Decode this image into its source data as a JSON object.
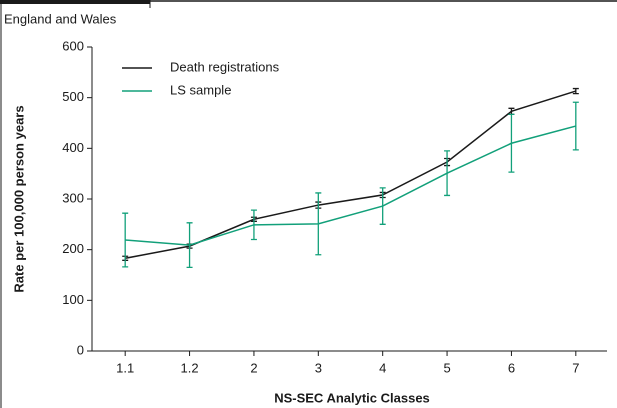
{
  "chart_data": {
    "type": "line",
    "title": "England and Wales",
    "x_label": "NS-SEC Analytic Classes",
    "y_label": "Rate per 100,000 person years",
    "categories": [
      "1.1",
      "1.2",
      "2",
      "3",
      "4",
      "5",
      "6",
      "7"
    ],
    "ylim": [
      0,
      600
    ],
    "yticks": [
      0,
      100,
      200,
      300,
      400,
      500,
      600
    ],
    "legend": "top-left",
    "series": [
      {
        "name": "Death registrations",
        "color": "#1a1a1a",
        "values": [
          183,
          207,
          260,
          288,
          308,
          373,
          473,
          513
        ],
        "errors": [
          4,
          4,
          4,
          6,
          5,
          7,
          6,
          5
        ]
      },
      {
        "name": "LS sample",
        "color": "#12a07a",
        "values": [
          219,
          209,
          249,
          251,
          286,
          351,
          410,
          444
        ],
        "errors": [
          53,
          44,
          29,
          61,
          36,
          44,
          57,
          47
        ]
      }
    ]
  }
}
